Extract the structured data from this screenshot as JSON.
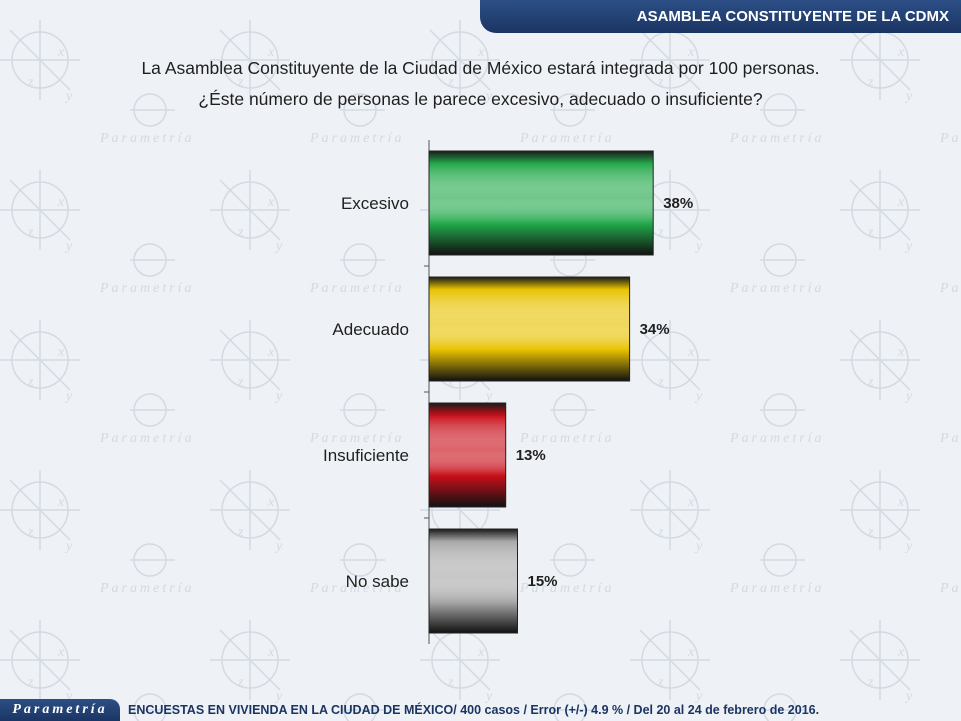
{
  "header": {
    "title": "ASAMBLEA CONSTITUYENTE DE LA CDMX"
  },
  "question": {
    "line1": "La Asamblea Constituyente de la Ciudad de México estará integrada por 100 personas.",
    "line2": "¿Éste número de personas le parece excesivo, adecuado o insuficiente?"
  },
  "watermark": {
    "text": "Parametría"
  },
  "chart_data": {
    "type": "bar",
    "orientation": "horizontal",
    "categories": [
      "Excesivo",
      "Adecuado",
      "Insuficiente",
      "No sabe"
    ],
    "values": [
      38,
      34,
      13,
      15
    ],
    "value_labels": [
      "38%",
      "34%",
      "13%",
      "15%"
    ],
    "colors": [
      "#22a84a",
      "#e8c200",
      "#c8101a",
      "#a8a8a8"
    ],
    "xlim": [
      0,
      100
    ],
    "grid": false,
    "legend": "none"
  },
  "footer": {
    "logo": "Parametría",
    "note": "ENCUESTAS EN VIVIENDA EN LA CIUDAD DE MÉXICO/ 400 casos / Error (+/-) 4.9 % / Del 20 al 24 de febrero de 2016."
  }
}
